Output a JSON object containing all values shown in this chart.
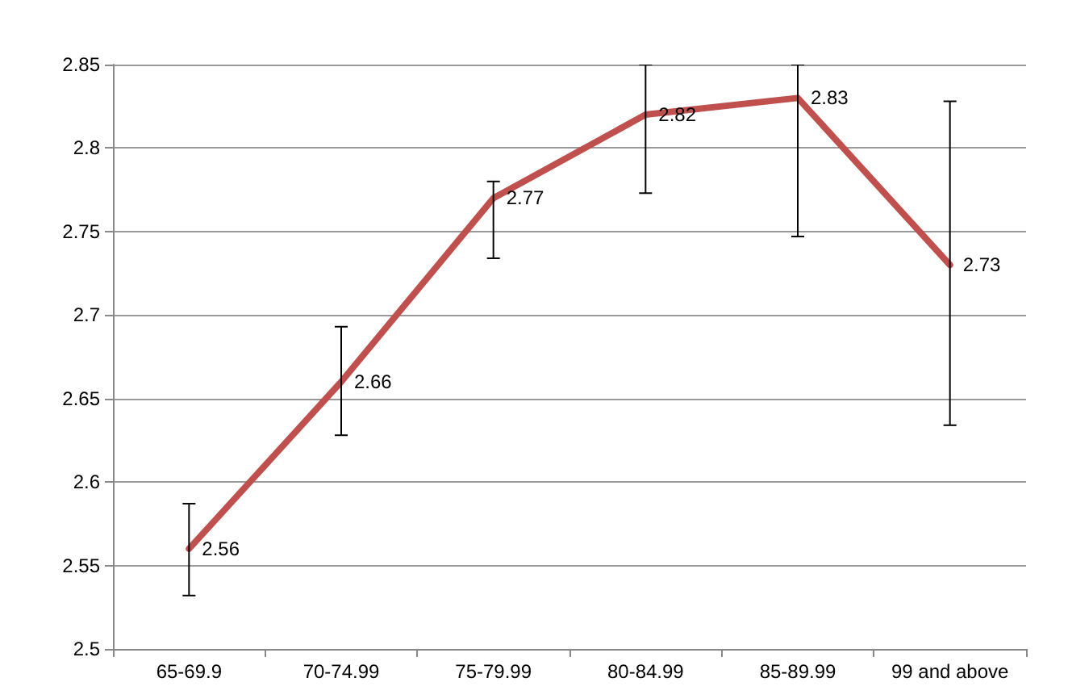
{
  "chart_data": {
    "type": "line",
    "categories": [
      "65-69.9",
      "70-74.99",
      "75-79.99",
      "80-84.99",
      "85-89.99",
      "99 and above"
    ],
    "series": [
      {
        "color": "#c0504d",
        "values": [
          2.56,
          2.66,
          2.77,
          2.82,
          2.83,
          2.73
        ],
        "errors": [
          [
            2.532,
            2.587
          ],
          [
            2.628,
            2.693
          ],
          [
            2.734,
            2.78
          ],
          [
            2.773,
            2.85
          ],
          [
            2.747,
            2.85
          ],
          [
            2.634,
            2.828
          ]
        ]
      }
    ],
    "ylim": [
      2.5,
      2.85
    ],
    "yticks": [
      2.5,
      2.55,
      2.6,
      2.65,
      2.7,
      2.75,
      2.8,
      2.85
    ],
    "grid": "y",
    "data_labels": true,
    "marker": "none",
    "line_style": "solid"
  }
}
